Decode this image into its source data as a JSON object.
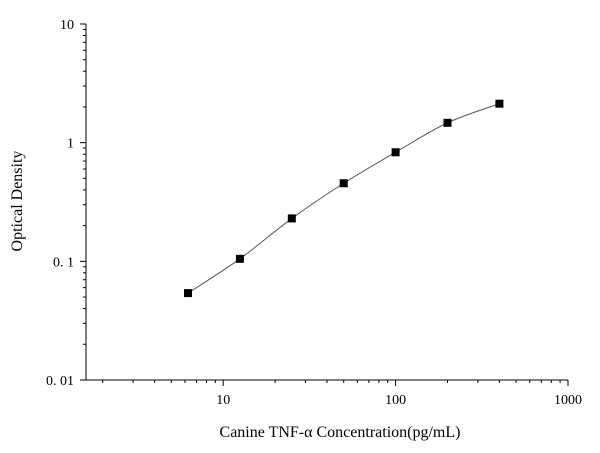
{
  "chart_data": {
    "type": "line",
    "title": "",
    "xlabel": "Canine TNF-α Concentration(pg/mL)",
    "ylabel": "Optical Density",
    "x_scale": "log",
    "y_scale": "log",
    "xlim": [
      1.6,
      1000
    ],
    "ylim": [
      0.01,
      10
    ],
    "x_ticks": [
      10,
      100,
      1000
    ],
    "x_tick_labels": [
      "10",
      "100",
      "1000"
    ],
    "y_ticks": [
      0.01,
      0.1,
      1,
      10
    ],
    "y_tick_labels": [
      "0. 01",
      "0. 1",
      "1",
      "10"
    ],
    "grid": false,
    "legend": false,
    "marker": "square",
    "series": [
      {
        "x": [
          6.25,
          12.5,
          25,
          50,
          100,
          200,
          400
        ],
        "y": [
          0.054,
          0.105,
          0.23,
          0.455,
          0.83,
          1.47,
          2.13
        ]
      }
    ],
    "colors": {
      "line": "#555555",
      "marker": "#000000",
      "axis": "#000000"
    }
  }
}
